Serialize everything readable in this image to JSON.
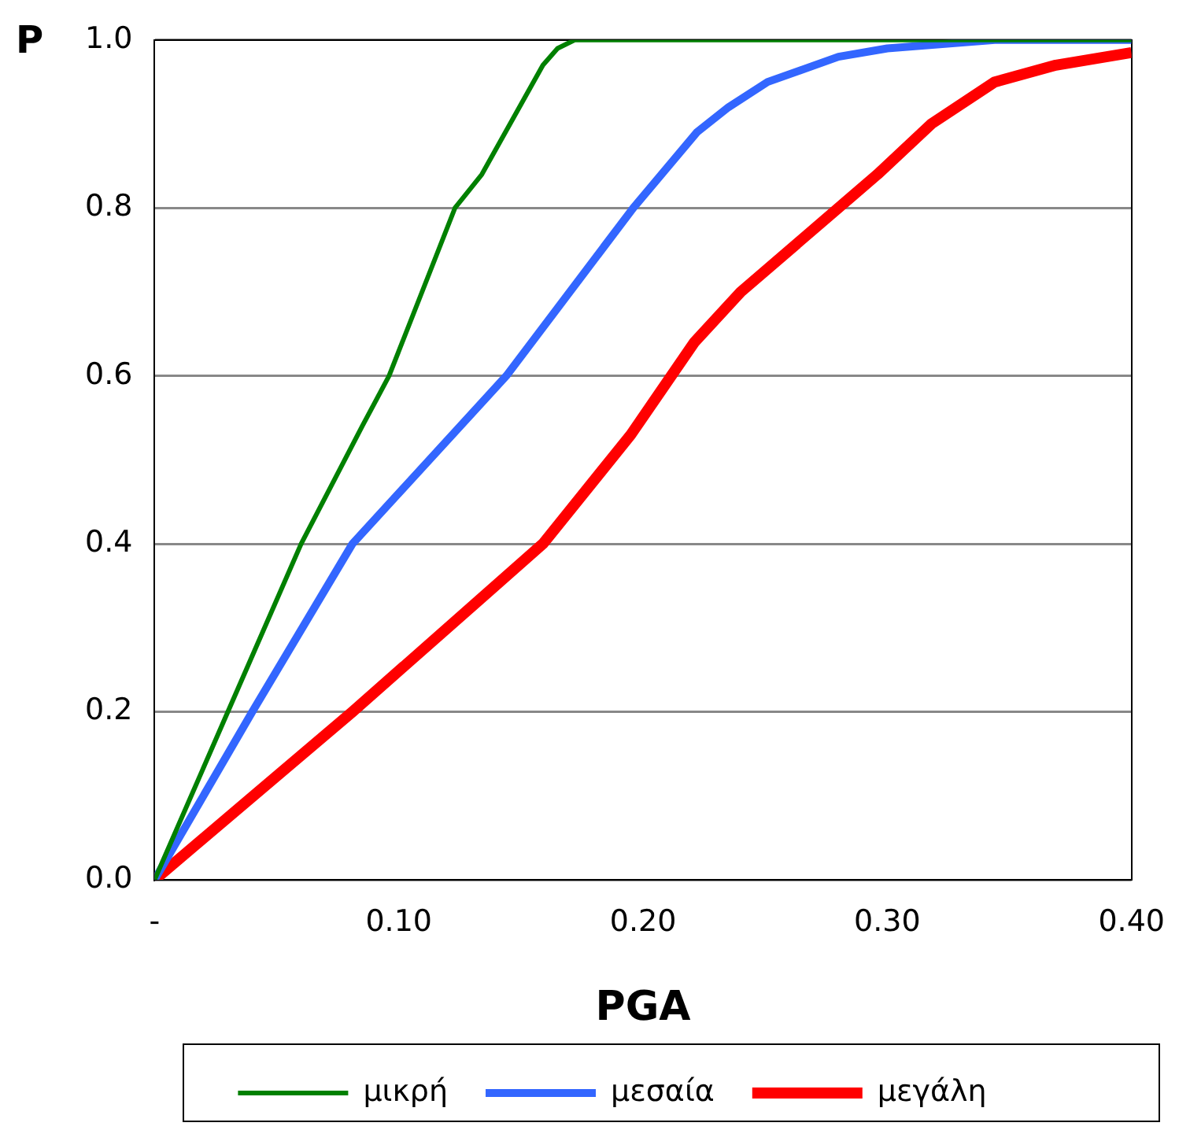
{
  "chart_data": {
    "type": "line",
    "xlabel": "PGA",
    "ylabel": "P",
    "xlim": [
      0,
      0.4
    ],
    "xticks": [
      {
        "value": 0,
        "label": "-"
      },
      {
        "value": 0.1,
        "label": "0.10"
      },
      {
        "value": 0.2,
        "label": "0.20"
      },
      {
        "value": 0.3,
        "label": "0.30"
      },
      {
        "value": 0.4,
        "label": "0.40"
      }
    ],
    "ylim": [
      0,
      1
    ],
    "yticks": [
      {
        "value": 0,
        "label": "0.0"
      },
      {
        "value": 0.2,
        "label": "0.2"
      },
      {
        "value": 0.4,
        "label": "0.4"
      },
      {
        "value": 0.6,
        "label": "0.6"
      },
      {
        "value": 0.8,
        "label": "0.8"
      },
      {
        "value": 1,
        "label": "1.0"
      }
    ],
    "grid": "y",
    "legend": "bottom",
    "marker": "none",
    "line_style": "solid",
    "series": [
      {
        "name": "μικρή",
        "color": "#008000",
        "x": [
          0,
          0.03,
          0.06,
          0.085,
          0.096,
          0.123,
          0.134,
          0.159,
          0.165,
          0.172,
          0.2,
          0.3,
          0.4
        ],
        "values": [
          0,
          0.2,
          0.4,
          0.54,
          0.6,
          0.8,
          0.84,
          0.97,
          0.99,
          1,
          1,
          1,
          1
        ]
      },
      {
        "name": "μεσαία",
        "color": "#3366ff",
        "x": [
          0,
          0.04,
          0.081,
          0.144,
          0.196,
          0.222,
          0.235,
          0.251,
          0.28,
          0.3,
          0.344,
          0.4
        ],
        "values": [
          0,
          0.2,
          0.4,
          0.6,
          0.8,
          0.89,
          0.92,
          0.95,
          0.98,
          0.99,
          1,
          1
        ]
      },
      {
        "name": "μεγάλη",
        "color": "#ff0000",
        "x": [
          0,
          0.081,
          0.159,
          0.195,
          0.221,
          0.24,
          0.296,
          0.318,
          0.344,
          0.369,
          0.4
        ],
        "values": [
          0,
          0.2,
          0.4,
          0.53,
          0.64,
          0.7,
          0.84,
          0.9,
          0.95,
          0.97,
          0.985
        ]
      }
    ]
  }
}
